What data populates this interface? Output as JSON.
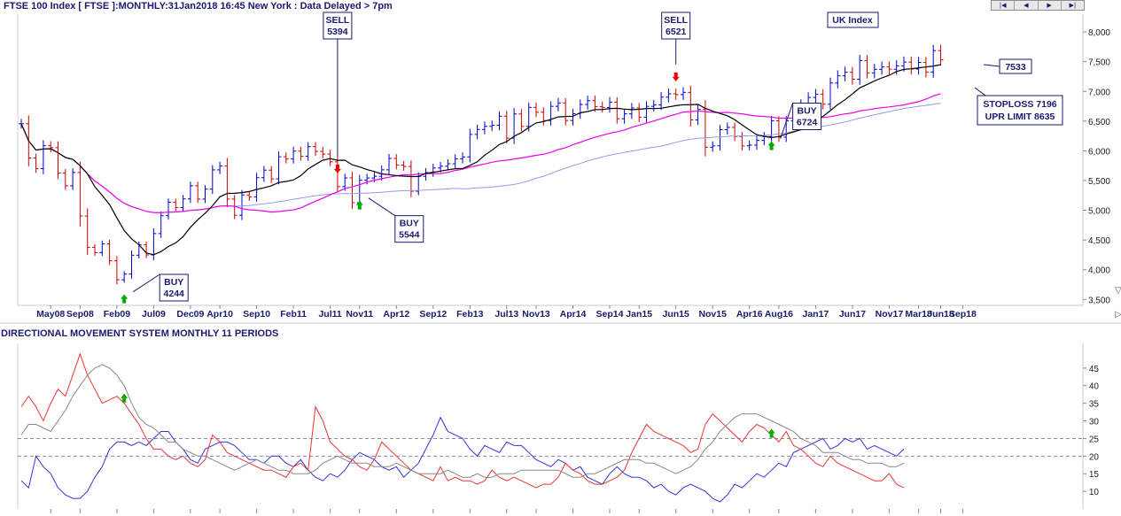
{
  "title": "FTSE 100 Index [ FTSE ]:MONTHLY:31Jan2018 16:45 New York : Data Delayed > 7pm",
  "nav": {
    "first": "|◀",
    "prev": "◀",
    "next": "▶",
    "last": "▶|"
  },
  "colors": {
    "up_bar": "#0000cc",
    "down_bar": "#cc0000",
    "ma_fast": "#000000",
    "ma_mid": "#ee00ee",
    "ma_slow": "#9999ee",
    "plus_di": "#3333dd",
    "minus_di": "#ee3333",
    "adx": "#888888",
    "signal_buy": "#00aa00",
    "signal_sell": "#ee0000"
  },
  "chart_data": [
    {
      "type": "line",
      "title": "FTSE 100 Index [ FTSE ]:MONTHLY:31Jan2018 16:45 New York : Data Delayed > 7pm",
      "x_tick_labels": [
        "May08",
        "Sep08",
        "Feb09",
        "Jul09",
        "Dec09",
        "Apr10",
        "Sep10",
        "Feb11",
        "Jul11",
        "Nov11",
        "Apr12",
        "Sep12",
        "Feb13",
        "Jul13",
        "Nov13",
        "Apr14",
        "Sep14",
        "Jan15",
        "Jun15",
        "Nov15",
        "Apr16",
        "Aug16",
        "Jan17",
        "Jun17",
        "Nov17",
        "Mar18",
        "Jun18",
        "Sep18"
      ],
      "y_tick_labels": [
        "8,000",
        "7,500",
        "7,000",
        "6,500",
        "6,000",
        "5,500",
        "5,000",
        "4,500",
        "4,000",
        "3,500"
      ],
      "ylim": [
        3400,
        8300
      ],
      "x_start": "2008-01",
      "bar_type": "ohlc monthly",
      "close": [
        6456,
        5880,
        5702,
        6087,
        6054,
        5626,
        5412,
        5636,
        4903,
        4377,
        4288,
        4434,
        4150,
        3830,
        3926,
        4244,
        4418,
        4249,
        4608,
        4908,
        5134,
        5045,
        5191,
        5413,
        5188,
        5355,
        5680,
        5744,
        5189,
        4917,
        5258,
        5225,
        5549,
        5675,
        5528,
        5900,
        5863,
        5995,
        5909,
        6070,
        5990,
        5945,
        5815,
        5398,
        5545,
        5128,
        5505,
        5544,
        5572,
        5681,
        5872,
        5760,
        5737,
        5321,
        5571,
        5635,
        5711,
        5741,
        5783,
        5867,
        5898,
        6277,
        6360,
        6412,
        6430,
        6583,
        6215,
        6621,
        6412,
        6731,
        6650,
        6510,
        6749,
        6806,
        6510,
        6625,
        6780,
        6844,
        6743,
        6730,
        6820,
        6540,
        6623,
        6722,
        6566,
        6749,
        6773,
        6903,
        6960,
        6946,
        6984,
        6521,
        6696,
        6061,
        6084,
        6356,
        6395,
        6242,
        6083,
        6097,
        6175,
        6241,
        6505,
        6230,
        6504,
        6724,
        6781,
        6899,
        6954,
        6784,
        7142,
        7263,
        7322,
        7204,
        7520,
        7312,
        7372,
        7411,
        7373,
        7430,
        7493,
        7377,
        7488,
        7327,
        7687,
        7533
      ],
      "ma_fast_period_note": "",
      "signals": [
        {
          "type": "BUY",
          "value": "4244",
          "date": "2009-03"
        },
        {
          "type": "SELL",
          "value": "5394",
          "date": "2011-08"
        },
        {
          "type": "BUY",
          "value": "5544",
          "date": "2011-11"
        },
        {
          "type": "SELL",
          "value": "6521",
          "date": "2015-06"
        },
        {
          "type": "BUY",
          "value": "6724",
          "date": "2016-07"
        }
      ],
      "last_price": "7533",
      "stoploss_label": "STOPLOSS 7196",
      "upper_limit_label": "UPR LIMIT 8635",
      "annotation": "UK Index"
    },
    {
      "type": "line",
      "title": "DIRECTIONAL MOVEMENT SYSTEM MONTHLY 11 PERIODS",
      "y_tick_labels": [
        "45",
        "40",
        "35",
        "30",
        "25",
        "20",
        "15",
        "10"
      ],
      "ylim": [
        5,
        52
      ],
      "reference_lines": [
        25,
        20
      ],
      "series": [
        {
          "key": "plus_di",
          "values": [
            13,
            11,
            20,
            17,
            15,
            11,
            9,
            8,
            8,
            10,
            14,
            17,
            22,
            24,
            24,
            23,
            24,
            23,
            25,
            27,
            27,
            24,
            22,
            19,
            18,
            22,
            23,
            24,
            24,
            23,
            21,
            19,
            19,
            18,
            20,
            20,
            18,
            17,
            19,
            16,
            14,
            13,
            15,
            14,
            16,
            19,
            21,
            20,
            19,
            17,
            16,
            17,
            14,
            16,
            18,
            22,
            26,
            31,
            27,
            26,
            25,
            22,
            20,
            23,
            22,
            21,
            24,
            23,
            23,
            21,
            19,
            18,
            17,
            19,
            18,
            16,
            17,
            14,
            13,
            12,
            15,
            17,
            15,
            14,
            14,
            13,
            11,
            12,
            10,
            9,
            11,
            12,
            11,
            10,
            8,
            7,
            9,
            12,
            11,
            13,
            15,
            14,
            16,
            18,
            17,
            21,
            22,
            23,
            24,
            25,
            22,
            23,
            25,
            24,
            25,
            22,
            23,
            22,
            21,
            20,
            22
          ]
        },
        {
          "key": "minus_di",
          "values": [
            34,
            37,
            34,
            30,
            35,
            39,
            37,
            43,
            49,
            43,
            39,
            35,
            36,
            37,
            35,
            32,
            29,
            25,
            22,
            22,
            20,
            19,
            20,
            18,
            17,
            19,
            26,
            24,
            21,
            20,
            19,
            18,
            17,
            16,
            16,
            15,
            14,
            17,
            18,
            16,
            34,
            30,
            24,
            22,
            20,
            19,
            17,
            16,
            19,
            24,
            22,
            20,
            18,
            16,
            15,
            14,
            13,
            17,
            13,
            14,
            13,
            13,
            12,
            13,
            16,
            14,
            13,
            14,
            13,
            12,
            11,
            12,
            12,
            14,
            18,
            16,
            15,
            13,
            12,
            12,
            13,
            14,
            16,
            21,
            25,
            29,
            27,
            26,
            25,
            24,
            23,
            21,
            22,
            29,
            32,
            30,
            28,
            26,
            24,
            27,
            29,
            28,
            26,
            24,
            27,
            23,
            22,
            20,
            18,
            17,
            20,
            18,
            17,
            16,
            15,
            14,
            13,
            13,
            15,
            12,
            11
          ]
        },
        {
          "key": "adx",
          "values": [
            26,
            29,
            29,
            28,
            27,
            30,
            33,
            37,
            40,
            43,
            45,
            46,
            45,
            43,
            40,
            35,
            31,
            29,
            28,
            26,
            24,
            24,
            22,
            21,
            20,
            20,
            19,
            18,
            17,
            16,
            17,
            18,
            19,
            18,
            17,
            16,
            16,
            15,
            15,
            15,
            16,
            18,
            19,
            20,
            19,
            18,
            18,
            18,
            17,
            17,
            17,
            18,
            17,
            16,
            15,
            15,
            15,
            15,
            16,
            15,
            14,
            14,
            15,
            14,
            14,
            15,
            15,
            15,
            16,
            16,
            16,
            16,
            16,
            16,
            15,
            14,
            14,
            15,
            15,
            16,
            17,
            18,
            19,
            19,
            19,
            18,
            18,
            17,
            16,
            15,
            16,
            17,
            19,
            22,
            24,
            27,
            29,
            31,
            32,
            32,
            32,
            31,
            30,
            29,
            28,
            27,
            25,
            24,
            23,
            21,
            21,
            21,
            20,
            19,
            19,
            18,
            18,
            18,
            17,
            17,
            18
          ]
        }
      ],
      "signals": [
        {
          "type": "BUY",
          "date": "2009-03"
        },
        {
          "type": "BUY",
          "date": "2016-07"
        }
      ]
    }
  ]
}
